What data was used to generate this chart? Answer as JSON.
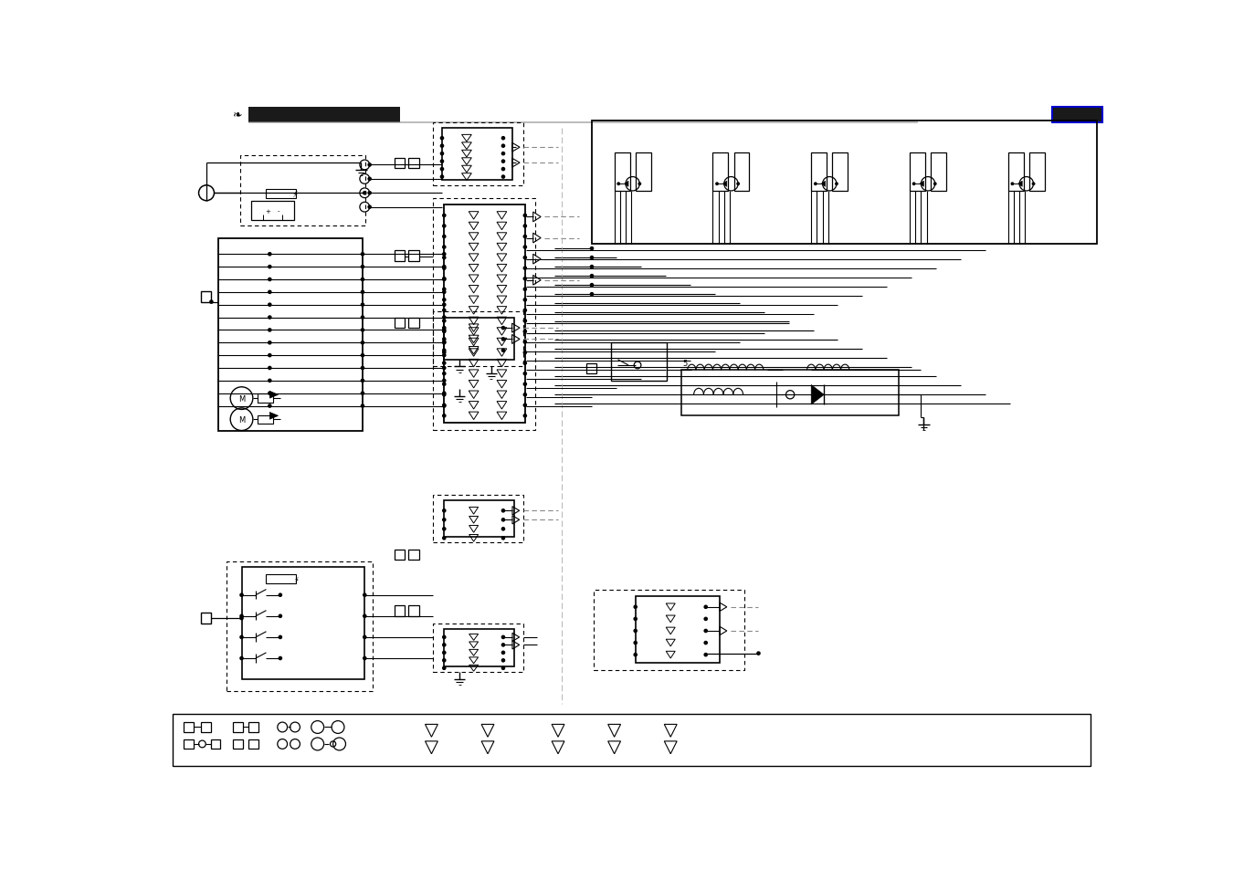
{
  "bg_color": "#ffffff",
  "lc": "#000000",
  "fig_width": 13.5,
  "fig_height": 9.54
}
